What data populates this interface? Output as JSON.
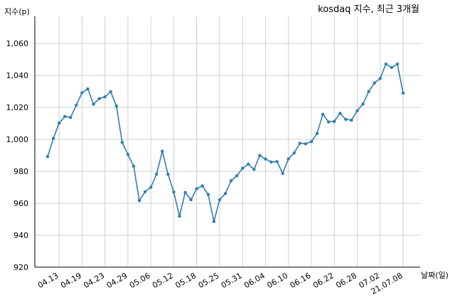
{
  "chart_data": {
    "type": "line",
    "title": "kosdaq 지수, 최근 3개월",
    "ylabel": "지수(p)",
    "xlabel": "날짜(일)",
    "ylim": [
      920,
      1077
    ],
    "yticks": [
      920,
      940,
      960,
      980,
      1000,
      1020,
      1040,
      1060
    ],
    "ytick_labels": [
      "920",
      "940",
      "960",
      "980",
      "1,000",
      "1,020",
      "1,040",
      "1,060"
    ],
    "xticks": [
      "04.13",
      "04.19",
      "04.23",
      "04.29",
      "05.06",
      "05.12",
      "05.18",
      "05.25",
      "05.31",
      "06.04",
      "06.10",
      "06.16",
      "06.22",
      "06.28",
      "07.02",
      "21.07.08"
    ],
    "xtick_positions": [
      2,
      6,
      10,
      14,
      18,
      22,
      26,
      30,
      34,
      38,
      42,
      46,
      50,
      54,
      58,
      62
    ],
    "grid": true,
    "line_color": "#2e7fb0",
    "series": [
      {
        "name": "",
        "values": [
          989.2,
          1000.6,
          1010.2,
          1014.3,
          1013.7,
          1021.5,
          1029.2,
          1031.6,
          1022.0,
          1025.5,
          1026.6,
          1029.8,
          1020.8,
          998.1,
          990.6,
          983.2,
          961.6,
          967.2,
          970.0,
          978.3,
          992.6,
          978.1,
          967.0,
          951.9,
          966.8,
          962.2,
          969.1,
          970.9,
          965.5,
          948.6,
          962.2,
          966.1,
          974.1,
          977.2,
          981.9,
          984.5,
          981.2,
          989.9,
          987.7,
          985.8,
          986.1,
          978.7,
          987.8,
          991.5,
          997.6,
          997.2,
          998.6,
          1003.7,
          1015.7,
          1010.9,
          1011.2,
          1016.3,
          1012.5,
          1012.0,
          1017.9,
          1022.1,
          1029.9,
          1035.3,
          1038.1,
          1047.1,
          1045.0,
          1047.1,
          1029.0
        ]
      }
    ]
  }
}
